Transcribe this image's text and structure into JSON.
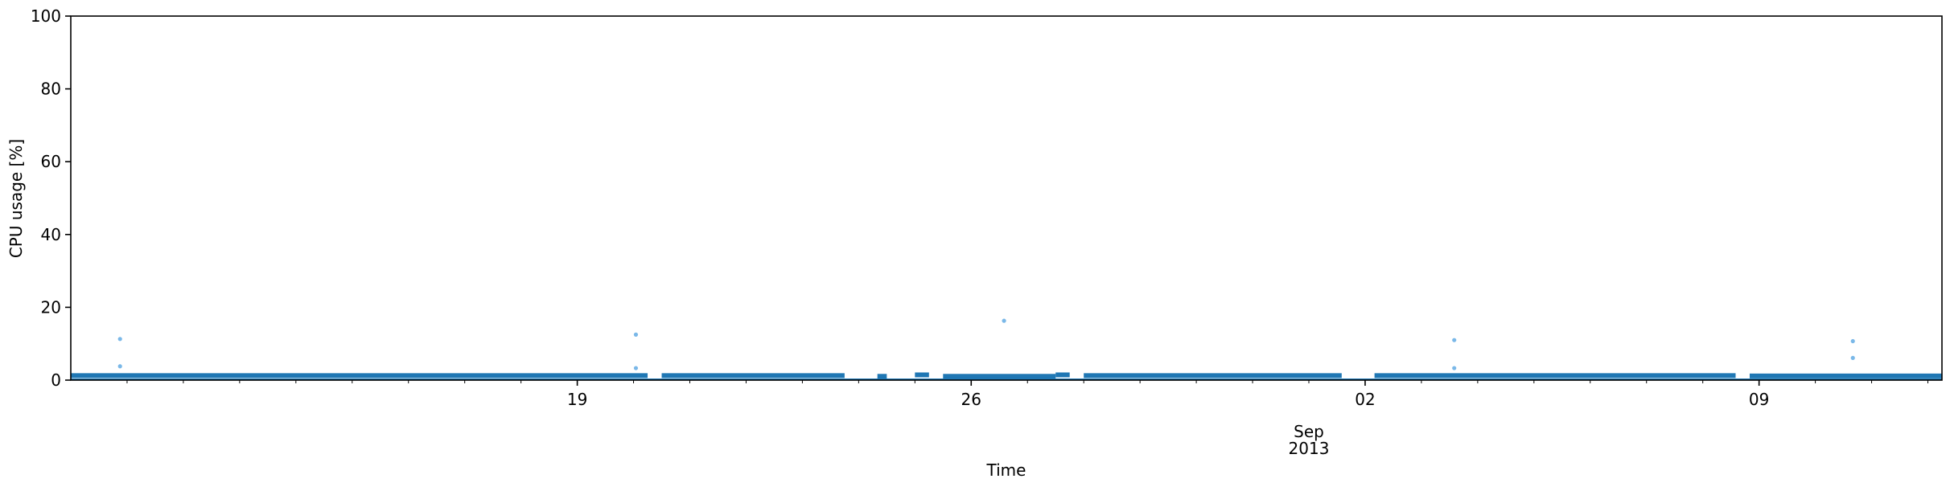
{
  "chart_data": {
    "type": "scatter",
    "title": "",
    "xlabel": "Time",
    "ylabel": "CPU usage [%]",
    "xlim": [
      "2013-08-10T00:00",
      "2013-09-12T06:00"
    ],
    "ylim": [
      0,
      100
    ],
    "yticks": [
      0,
      20,
      40,
      60,
      80,
      100
    ],
    "xticks": [
      {
        "date": "2013-08-19",
        "label": "19",
        "sublabel": ""
      },
      {
        "date": "2013-08-26",
        "label": "26",
        "sublabel": ""
      },
      {
        "date": "2013-09-02",
        "label": "02",
        "sublabel": ""
      },
      {
        "date": "2013-09-09",
        "label": "09",
        "sublabel": ""
      }
    ],
    "secondary_label": {
      "date": "2013-09-01",
      "line1": "Sep",
      "line2": "2013"
    },
    "marker_color": "#1f77b4",
    "outlier_color": "#7ab8e8",
    "baseline_segments": [
      {
        "start": "2013-08-10T00:00",
        "end": "2013-08-20T06:00",
        "value": 0.8
      },
      {
        "start": "2013-08-20T12:00",
        "end": "2013-08-23T18:00",
        "value": 0.8
      },
      {
        "start": "2013-08-24T08:00",
        "end": "2013-08-24T12:00",
        "value": 0.6
      },
      {
        "start": "2013-08-25T00:00",
        "end": "2013-08-25T06:00",
        "value": 1.0
      },
      {
        "start": "2013-08-25T12:00",
        "end": "2013-08-27T12:00",
        "value": 0.6
      },
      {
        "start": "2013-08-27T12:00",
        "end": "2013-08-27T18:00",
        "value": 1.0
      },
      {
        "start": "2013-08-28T00:00",
        "end": "2013-09-01T14:00",
        "value": 0.8
      },
      {
        "start": "2013-09-02T04:00",
        "end": "2013-09-08T14:00",
        "value": 0.8
      },
      {
        "start": "2013-09-08T20:00",
        "end": "2013-09-12T06:00",
        "value": 0.7
      }
    ],
    "outliers": [
      {
        "x": "2013-08-10T21:00",
        "y": 11.3
      },
      {
        "x": "2013-08-10T21:00",
        "y": 3.8
      },
      {
        "x": "2013-08-20T01:00",
        "y": 12.5
      },
      {
        "x": "2013-08-20T01:00",
        "y": 3.3
      },
      {
        "x": "2013-08-26T14:00",
        "y": 16.3
      },
      {
        "x": "2013-09-03T14:00",
        "y": 11.0
      },
      {
        "x": "2013-09-03T14:00",
        "y": 3.3
      },
      {
        "x": "2013-09-10T16:00",
        "y": 10.7
      },
      {
        "x": "2013-09-10T16:00",
        "y": 6.1
      }
    ]
  }
}
